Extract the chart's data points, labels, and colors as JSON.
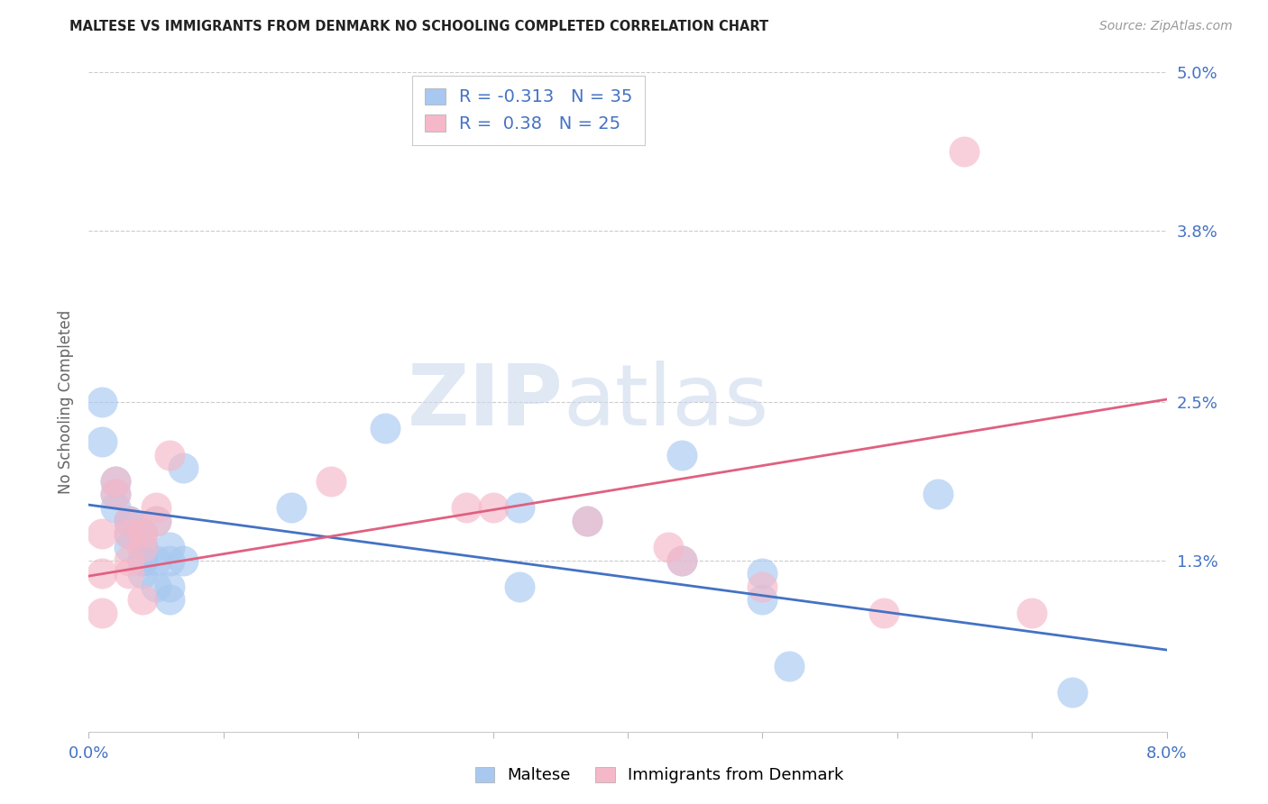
{
  "title": "MALTESE VS IMMIGRANTS FROM DENMARK NO SCHOOLING COMPLETED CORRELATION CHART",
  "source": "Source: ZipAtlas.com",
  "ylabel": "No Schooling Completed",
  "watermark_zip": "ZIP",
  "watermark_atlas": "atlas",
  "xmin": 0.0,
  "xmax": 0.08,
  "ymin": 0.0,
  "ymax": 0.05,
  "yticks": [
    0.0,
    0.013,
    0.025,
    0.038,
    0.05
  ],
  "ytick_labels": [
    "",
    "1.3%",
    "2.5%",
    "3.8%",
    "5.0%"
  ],
  "xticks": [
    0.0,
    0.01,
    0.02,
    0.03,
    0.04,
    0.05,
    0.06,
    0.07,
    0.08
  ],
  "xtick_labels": [
    "0.0%",
    "",
    "",
    "",
    "",
    "",
    "",
    "",
    "8.0%"
  ],
  "blue_label": "Maltese",
  "pink_label": "Immigrants from Denmark",
  "blue_R": -0.313,
  "blue_N": 35,
  "pink_R": 0.38,
  "pink_N": 25,
  "blue_color": "#a8c8f0",
  "pink_color": "#f5b8c8",
  "blue_line_color": "#4472c4",
  "pink_line_color": "#e06080",
  "blue_scatter": [
    [
      0.001,
      0.025
    ],
    [
      0.001,
      0.022
    ],
    [
      0.002,
      0.019
    ],
    [
      0.002,
      0.018
    ],
    [
      0.002,
      0.017
    ],
    [
      0.003,
      0.016
    ],
    [
      0.003,
      0.016
    ],
    [
      0.003,
      0.015
    ],
    [
      0.003,
      0.014
    ],
    [
      0.004,
      0.015
    ],
    [
      0.004,
      0.014
    ],
    [
      0.004,
      0.013
    ],
    [
      0.004,
      0.013
    ],
    [
      0.004,
      0.012
    ],
    [
      0.005,
      0.016
    ],
    [
      0.005,
      0.013
    ],
    [
      0.005,
      0.011
    ],
    [
      0.006,
      0.014
    ],
    [
      0.006,
      0.013
    ],
    [
      0.006,
      0.011
    ],
    [
      0.006,
      0.01
    ],
    [
      0.007,
      0.02
    ],
    [
      0.007,
      0.013
    ],
    [
      0.015,
      0.017
    ],
    [
      0.022,
      0.023
    ],
    [
      0.032,
      0.017
    ],
    [
      0.032,
      0.011
    ],
    [
      0.037,
      0.016
    ],
    [
      0.044,
      0.021
    ],
    [
      0.044,
      0.013
    ],
    [
      0.05,
      0.012
    ],
    [
      0.05,
      0.01
    ],
    [
      0.052,
      0.005
    ],
    [
      0.063,
      0.018
    ],
    [
      0.073,
      0.003
    ]
  ],
  "pink_scatter": [
    [
      0.001,
      0.015
    ],
    [
      0.001,
      0.012
    ],
    [
      0.001,
      0.009
    ],
    [
      0.002,
      0.019
    ],
    [
      0.002,
      0.018
    ],
    [
      0.003,
      0.016
    ],
    [
      0.003,
      0.015
    ],
    [
      0.003,
      0.013
    ],
    [
      0.003,
      0.012
    ],
    [
      0.004,
      0.01
    ],
    [
      0.004,
      0.015
    ],
    [
      0.004,
      0.014
    ],
    [
      0.005,
      0.017
    ],
    [
      0.005,
      0.016
    ],
    [
      0.006,
      0.021
    ],
    [
      0.018,
      0.019
    ],
    [
      0.028,
      0.017
    ],
    [
      0.03,
      0.017
    ],
    [
      0.037,
      0.016
    ],
    [
      0.043,
      0.014
    ],
    [
      0.044,
      0.013
    ],
    [
      0.05,
      0.011
    ],
    [
      0.059,
      0.009
    ],
    [
      0.065,
      0.044
    ],
    [
      0.07,
      0.009
    ]
  ],
  "blue_trendline": [
    [
      0.0,
      0.0172
    ],
    [
      0.08,
      0.0062
    ]
  ],
  "pink_trendline": [
    [
      0.0,
      0.0118
    ],
    [
      0.08,
      0.0252
    ]
  ]
}
